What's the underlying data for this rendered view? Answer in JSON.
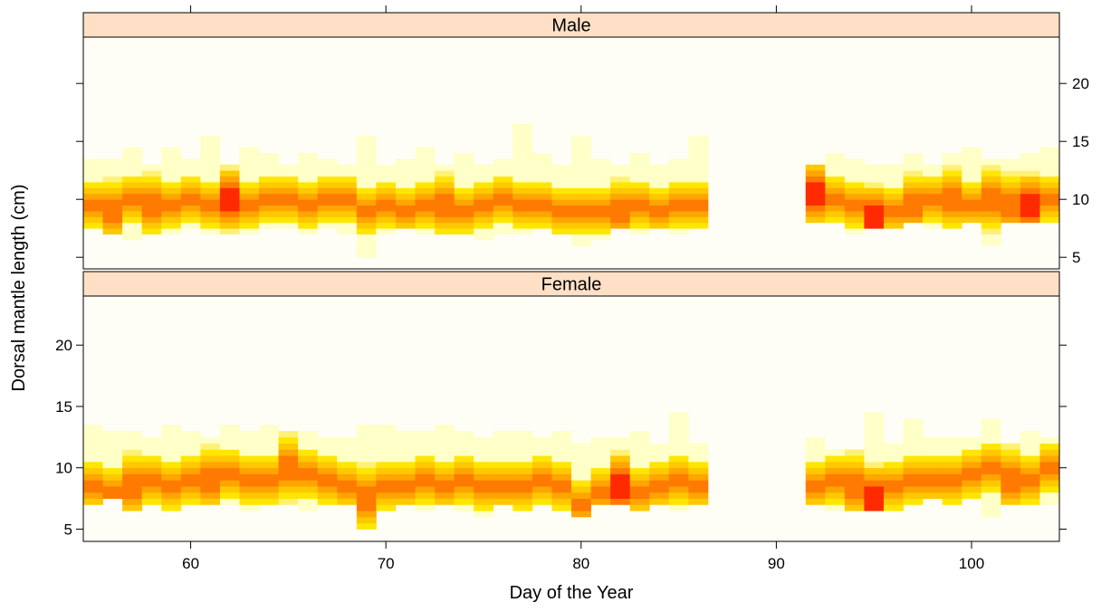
{
  "chart_data": {
    "type": "heatmap",
    "title": "",
    "xlabel": "Day of the Year",
    "ylabel": "Dorsal mantle length (cm)",
    "xlim": [
      54.5,
      104.5
    ],
    "ylim": [
      4,
      24
    ],
    "x_ticks": [
      60,
      70,
      80,
      90,
      100
    ],
    "x_tick_labels": [
      "60",
      "70",
      "80",
      "90",
      "100"
    ],
    "y_ticks": [
      5,
      10,
      15,
      20
    ],
    "y_tick_labels": [
      "5",
      "10",
      "15",
      "20"
    ],
    "y_bin_width_cm": 0.5,
    "color_scale": [
      "#FFFFC8",
      "#FFF176",
      "#FFE600",
      "#FFC800",
      "#FFA500",
      "#FF7A00",
      "#FF2A00"
    ],
    "background_color": "#FFFEF6",
    "strip_color": "#FFE0C6",
    "grid": false,
    "legend": "none",
    "panels": [
      {
        "name": "Male",
        "days": [
          55,
          56,
          57,
          58,
          59,
          60,
          61,
          62,
          63,
          64,
          65,
          66,
          67,
          68,
          69,
          70,
          71,
          72,
          73,
          74,
          75,
          76,
          77,
          78,
          79,
          80,
          81,
          82,
          83,
          84,
          85,
          86,
          92,
          93,
          94,
          95,
          96,
          97,
          98,
          99,
          100,
          101,
          102,
          103,
          104
        ],
        "bins": [
          [
            7.5,
            13.5,
            2,
            9.5
          ],
          [
            7,
            13.5,
            3,
            9.0
          ],
          [
            6.5,
            14.5,
            2,
            10.0
          ],
          [
            7,
            13,
            3,
            9.5
          ],
          [
            7,
            14.5,
            2,
            9.5
          ],
          [
            7.5,
            13.5,
            2,
            10.0
          ],
          [
            7,
            15.5,
            2,
            9.5
          ],
          [
            7,
            13,
            3,
            10.0
          ],
          [
            7,
            14.5,
            2,
            9.5
          ],
          [
            7.5,
            14,
            2,
            10.0
          ],
          [
            7.5,
            13,
            2,
            10.0
          ],
          [
            7,
            14,
            2,
            9.5
          ],
          [
            7.5,
            13.5,
            2,
            10.0
          ],
          [
            7,
            13,
            2,
            10.0
          ],
          [
            5,
            15.5,
            2,
            9.0
          ],
          [
            7,
            13,
            2,
            9.5
          ],
          [
            7.5,
            13.5,
            2,
            9.0
          ],
          [
            7,
            14.5,
            2,
            9.5
          ],
          [
            7,
            13,
            3,
            9.5
          ],
          [
            7,
            14,
            2,
            9.0
          ],
          [
            6.5,
            13,
            2,
            9.5
          ],
          [
            7,
            13.5,
            2,
            10.0
          ],
          [
            7,
            16.5,
            2,
            9.5
          ],
          [
            7.5,
            14,
            2,
            9.5
          ],
          [
            7,
            13,
            2,
            9.0
          ],
          [
            6,
            15.5,
            2,
            9.0
          ],
          [
            6.5,
            13.5,
            2,
            9.0
          ],
          [
            7.5,
            13,
            3,
            9.0
          ],
          [
            7,
            14,
            2,
            9.5
          ],
          [
            7.5,
            13,
            2,
            9.0
          ],
          [
            7,
            13.5,
            2,
            9.5
          ],
          [
            7.5,
            15.5,
            2,
            9.5
          ],
          [
            8,
            13,
            3,
            10.5
          ],
          [
            8,
            14,
            2,
            10.0
          ],
          [
            7,
            13.5,
            2,
            9.5
          ],
          [
            7.5,
            13,
            3,
            8.5
          ],
          [
            7.5,
            13,
            2,
            9.0
          ],
          [
            8,
            14,
            3,
            9.5
          ],
          [
            7.5,
            13,
            2,
            10.0
          ],
          [
            7.5,
            14,
            3,
            10.0
          ],
          [
            8,
            14.5,
            2,
            9.5
          ],
          [
            6,
            13.5,
            3,
            10.0
          ],
          [
            8,
            13.5,
            3,
            9.5
          ],
          [
            8,
            14,
            3,
            9.5
          ],
          [
            8,
            14.5,
            2,
            10.0
          ]
        ]
      },
      {
        "name": "Female",
        "days": [
          55,
          56,
          57,
          58,
          59,
          60,
          61,
          62,
          63,
          64,
          65,
          66,
          67,
          68,
          69,
          70,
          71,
          72,
          73,
          74,
          75,
          76,
          77,
          78,
          79,
          80,
          81,
          82,
          83,
          84,
          85,
          86,
          92,
          93,
          94,
          95,
          96,
          97,
          98,
          99,
          100,
          101,
          102,
          103,
          104
        ],
        "bins": [
          [
            7,
            13.5,
            2,
            8.5
          ],
          [
            7.5,
            13,
            2,
            8.0
          ],
          [
            6.5,
            13,
            3,
            8.5
          ],
          [
            7,
            12.5,
            2,
            9.0
          ],
          [
            6.5,
            13.5,
            2,
            8.5
          ],
          [
            7,
            13,
            2,
            9.0
          ],
          [
            7,
            12.5,
            3,
            9.0
          ],
          [
            7,
            13.5,
            2,
            9.5
          ],
          [
            6.5,
            13,
            2,
            9.0
          ],
          [
            7,
            13.5,
            2,
            9.0
          ],
          [
            7,
            13,
            3,
            10.0
          ],
          [
            6.5,
            13,
            2,
            9.5
          ],
          [
            7,
            12.5,
            2,
            9.0
          ],
          [
            7,
            12.5,
            2,
            8.5
          ],
          [
            5,
            13.5,
            3,
            7.5
          ],
          [
            6.5,
            13.5,
            2,
            8.5
          ],
          [
            7,
            13,
            2,
            8.5
          ],
          [
            6.5,
            13,
            2,
            9.0
          ],
          [
            7,
            13.5,
            2,
            8.5
          ],
          [
            6.5,
            13,
            2,
            9.0
          ],
          [
            6,
            12.5,
            2,
            8.5
          ],
          [
            7,
            13,
            2,
            8.5
          ],
          [
            6.5,
            13,
            2,
            8.5
          ],
          [
            7,
            12.5,
            2,
            9.0
          ],
          [
            6.5,
            13,
            2,
            8.5
          ],
          [
            6,
            12,
            2,
            7.0
          ],
          [
            7,
            12.5,
            2,
            8.0
          ],
          [
            7,
            12.5,
            3,
            8.5
          ],
          [
            6.5,
            13,
            2,
            8.0
          ],
          [
            7,
            12,
            2,
            8.5
          ],
          [
            6.5,
            14.5,
            2,
            9.0
          ],
          [
            7,
            12,
            2,
            8.5
          ],
          [
            7,
            12.5,
            2,
            8.5
          ],
          [
            6.5,
            11.5,
            2,
            9.0
          ],
          [
            6.5,
            11.5,
            3,
            8.5
          ],
          [
            6.5,
            14.5,
            3,
            7.5
          ],
          [
            6.5,
            12,
            2,
            8.5
          ],
          [
            7,
            14,
            2,
            9.0
          ],
          [
            7.5,
            12.5,
            2,
            9.0
          ],
          [
            7,
            12.5,
            2,
            9.0
          ],
          [
            7.5,
            12.5,
            2,
            9.5
          ],
          [
            6,
            14,
            2,
            10.0
          ],
          [
            7,
            12,
            3,
            9.0
          ],
          [
            7,
            13,
            2,
            9.0
          ],
          [
            7,
            12.5,
            2,
            10.0
          ]
        ]
      }
    ]
  }
}
